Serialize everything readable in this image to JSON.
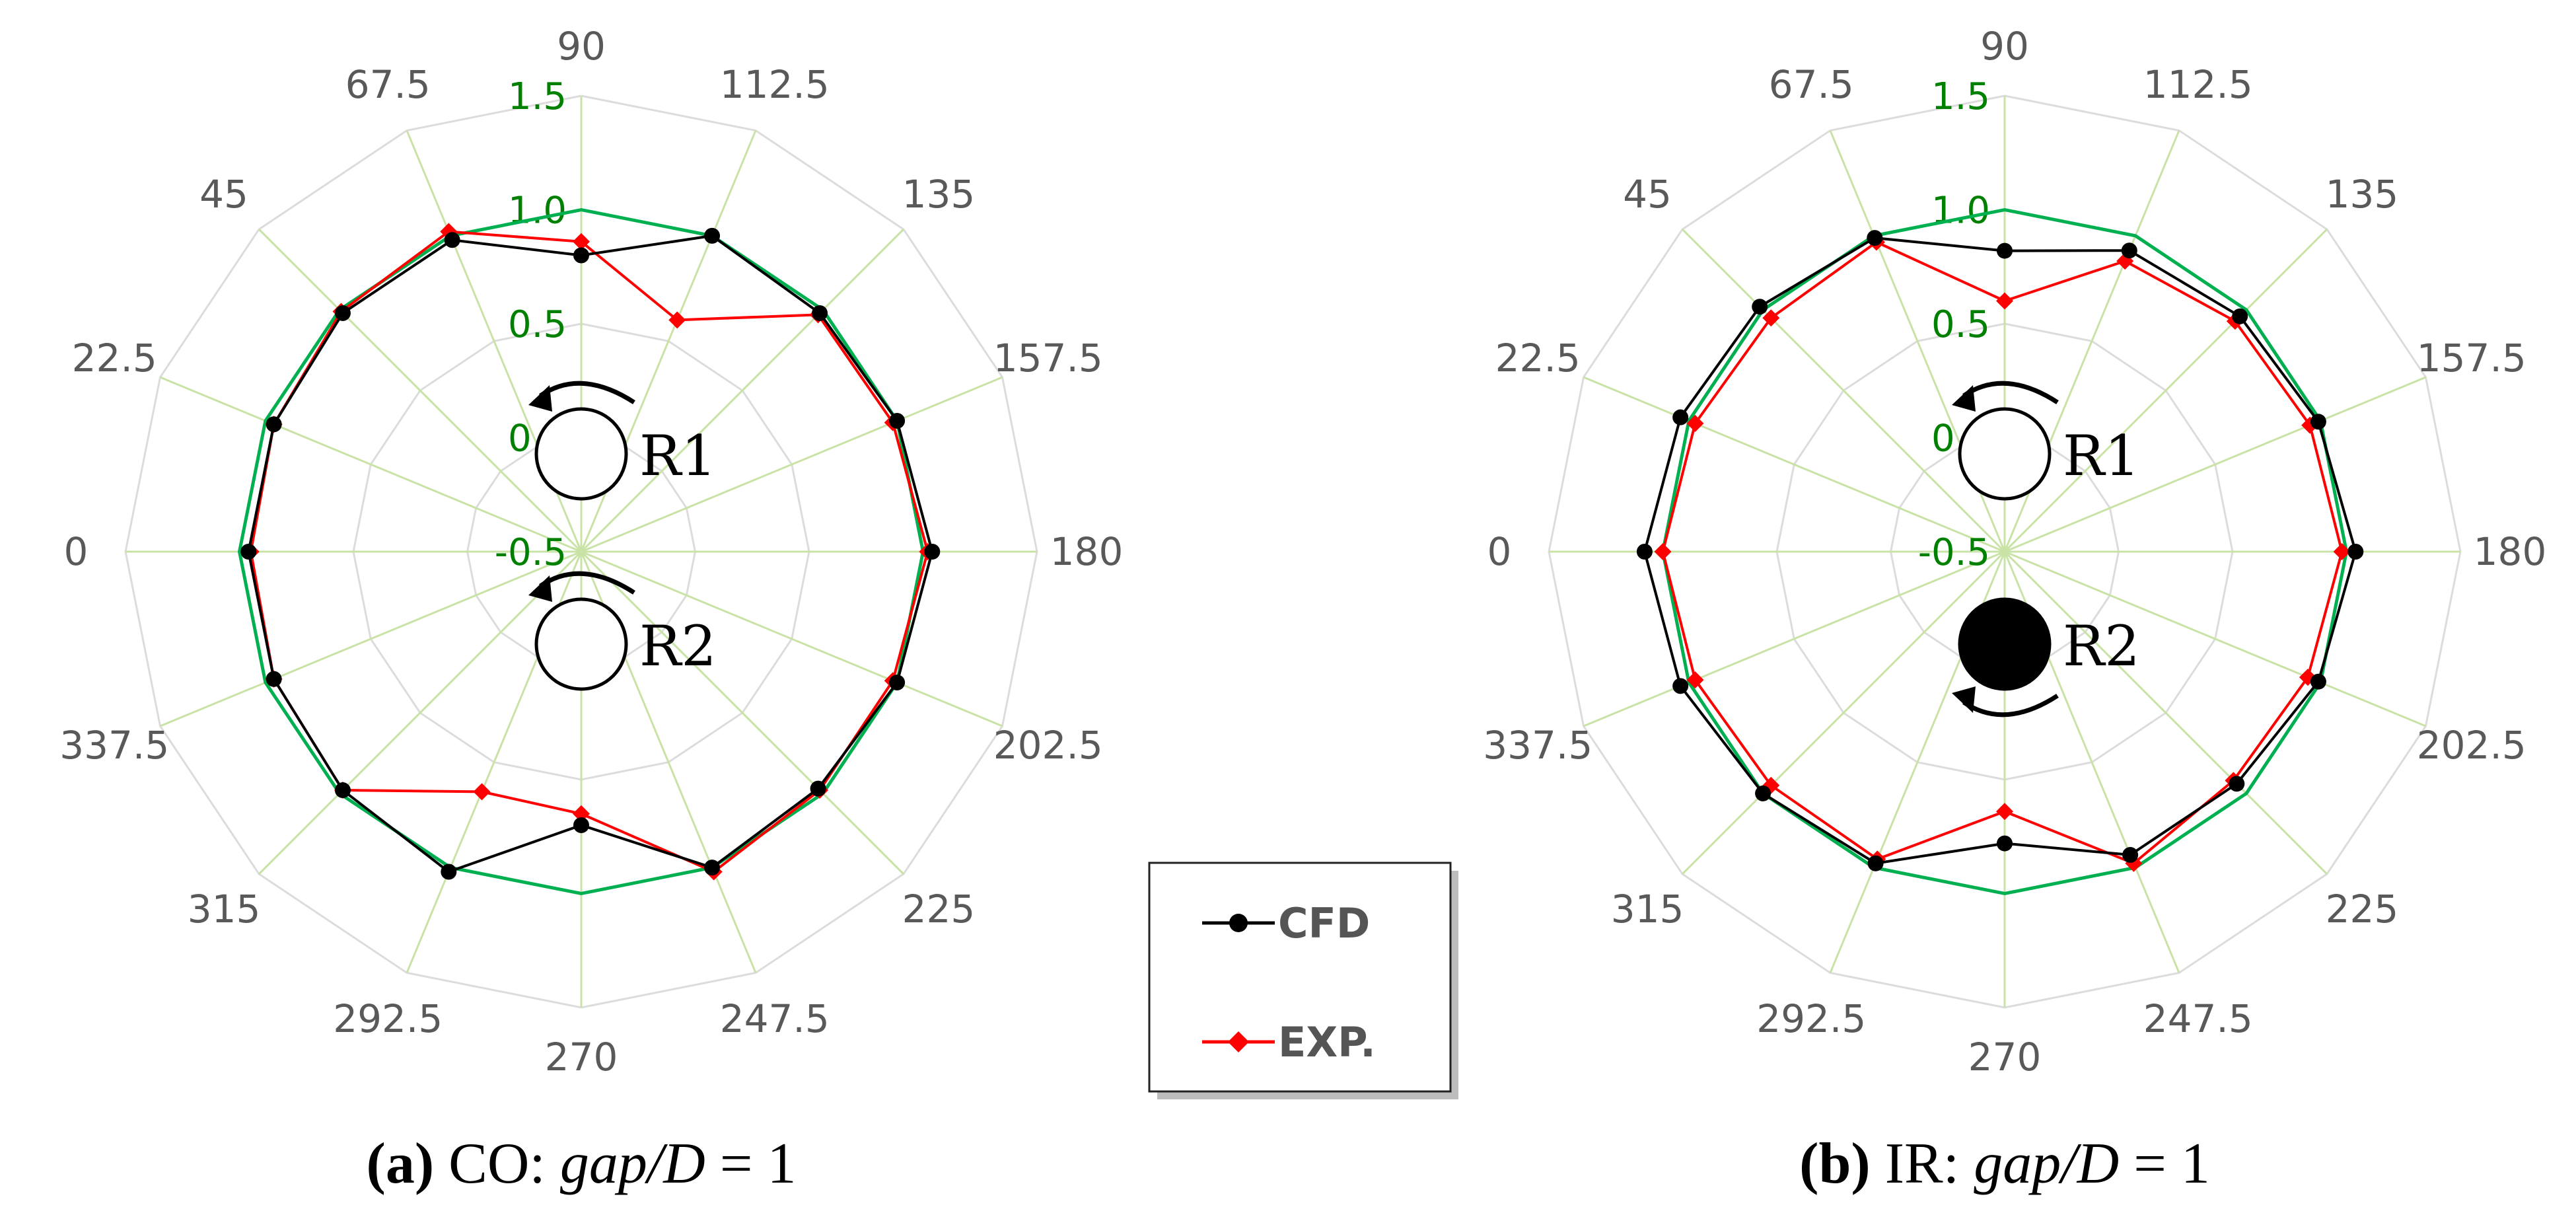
{
  "chart_data": [
    {
      "type": "radar",
      "angles": [
        "0",
        "22.5",
        "45",
        "67.5",
        "90",
        "112.5",
        "135",
        "157.5",
        "180",
        "202.5",
        "225",
        "247.5",
        "270",
        "292.5",
        "315",
        "337.5"
      ],
      "radial_ticks": [
        "-0.5",
        "0.0",
        "0.5",
        "1.0",
        "1.5"
      ],
      "rlim": [
        -0.5,
        1.5
      ],
      "reference": {
        "values": [
          1.0,
          1.0,
          1.0,
          1.0,
          1.0,
          1.0,
          1.0,
          1.0,
          1.0,
          1.0,
          1.0,
          1.0,
          1.0,
          1.0,
          1.0,
          1.0
        ]
      },
      "series": [
        {
          "name": "CFD",
          "values": [
            0.96,
            0.96,
            0.98,
            0.98,
            0.8,
            1.0,
            0.98,
            1.0,
            1.04,
            1.0,
            0.97,
            1.0,
            0.7,
            1.02,
            0.98,
            0.96
          ]
        },
        {
          "name": "EXP.",
          "values": [
            0.95,
            0.96,
            0.99,
            1.02,
            0.86,
            0.6,
            0.97,
            0.98,
            1.02,
            0.98,
            0.98,
            1.02,
            0.65,
            0.64,
            0.98,
            0.96
          ]
        }
      ],
      "rotors": [
        {
          "label": "R1",
          "filled": false,
          "rotation": "counterclockwise"
        },
        {
          "label": "R2",
          "filled": false,
          "rotation": "counterclockwise"
        }
      ],
      "caption": {
        "letter": "(a)",
        "mode": "CO:",
        "ratio_italic": "gap",
        "ratio_rest": "/D",
        "value": "= 1"
      }
    },
    {
      "type": "radar",
      "angles": [
        "0",
        "22.5",
        "45",
        "67.5",
        "90",
        "112.5",
        "135",
        "157.5",
        "180",
        "202.5",
        "225",
        "247.5",
        "270",
        "292.5",
        "315",
        "337.5"
      ],
      "radial_ticks": [
        "-0.5",
        "0.0",
        "0.5",
        "1.0",
        "1.5"
      ],
      "rlim": [
        -0.5,
        1.5
      ],
      "reference": {
        "values": [
          1.0,
          1.0,
          1.0,
          1.0,
          1.0,
          1.0,
          1.0,
          1.0,
          1.0,
          1.0,
          1.0,
          1.0,
          1.0,
          1.0,
          1.0,
          1.0
        ]
      },
      "series": [
        {
          "name": "CFD",
          "values": [
            1.08,
            1.04,
            1.02,
            0.99,
            0.82,
            0.93,
            0.96,
            0.99,
            1.04,
            0.99,
            0.94,
            0.94,
            0.78,
            0.98,
            1.0,
            1.04
          ]
        },
        {
          "name": "EXP.",
          "values": [
            1.0,
            0.97,
            0.95,
            0.97,
            0.6,
            0.88,
            0.93,
            0.95,
            0.98,
            0.94,
            0.92,
            0.98,
            0.64,
            0.96,
            0.95,
            0.97
          ]
        }
      ],
      "rotors": [
        {
          "label": "R1",
          "filled": false,
          "rotation": "counterclockwise"
        },
        {
          "label": "R2",
          "filled": true,
          "rotation": "clockwise"
        }
      ],
      "caption": {
        "letter": "(b)",
        "mode": "IR:",
        "ratio_italic": "gap",
        "ratio_rest": "/D",
        "value": "= 1"
      }
    }
  ],
  "legend": {
    "items": [
      {
        "name": "CFD",
        "color": "#000000",
        "marker": "circle"
      },
      {
        "name": "EXP.",
        "color": "#ff0000",
        "marker": "diamond"
      }
    ]
  },
  "colors": {
    "reference": "#00b050",
    "cfd": "#000000",
    "exp": "#ff0000",
    "axis": "#c9e3a6",
    "ring": "#dcdcdc",
    "tick": "#008000",
    "angle_label": "#595959"
  }
}
